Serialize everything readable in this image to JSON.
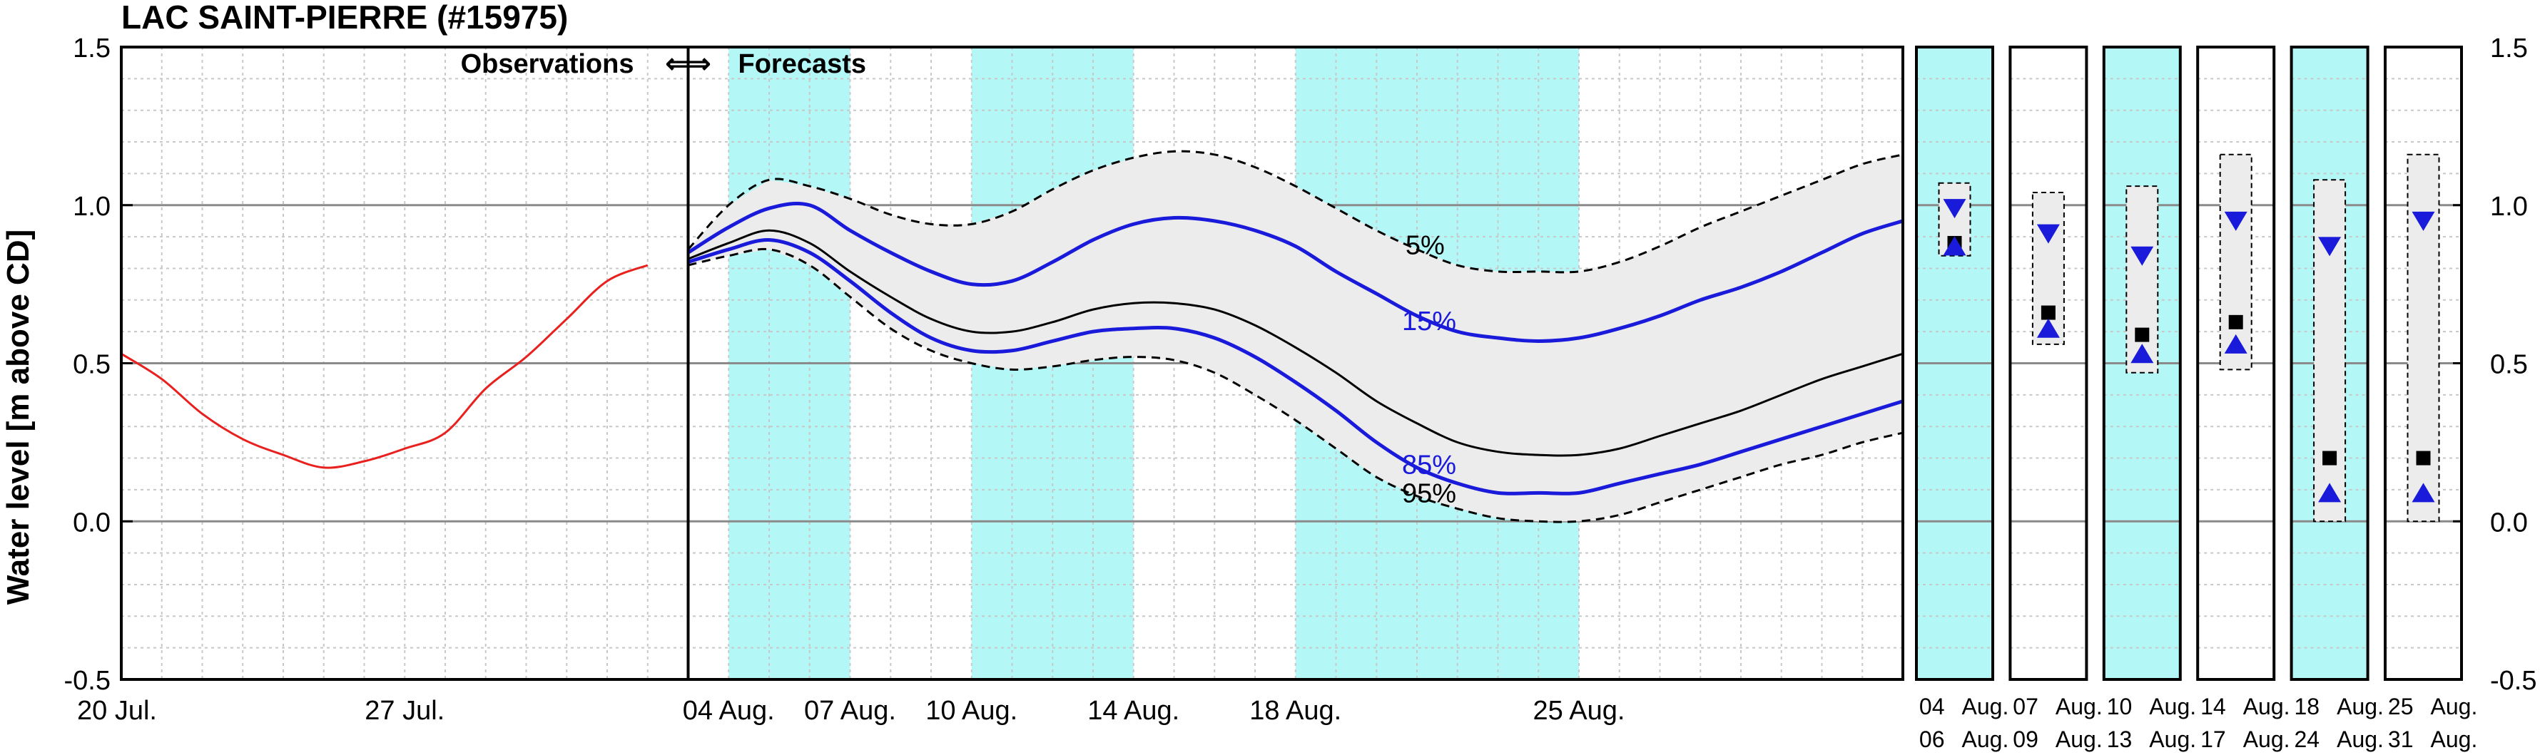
{
  "chart_data": {
    "type": "line",
    "title": "LAC SAINT-PIERRE (#15975)",
    "ylabel": "Water level [m above CD]",
    "ylim": [
      -0.5,
      1.5
    ],
    "yticks": [
      "1.5",
      "1.0",
      "0.5",
      "0.0",
      "-0.5"
    ],
    "ytick_values": [
      1.5,
      1.0,
      0.5,
      0.0,
      -0.5
    ],
    "xlim": [
      0,
      44
    ],
    "x_tick_labels": [
      {
        "x": 0,
        "label": "20 Jul."
      },
      {
        "x": 7,
        "label": "27 Jul."
      },
      {
        "x": 15,
        "label": "04 Aug."
      },
      {
        "x": 18,
        "label": "07 Aug."
      },
      {
        "x": 21,
        "label": "10 Aug."
      },
      {
        "x": 25,
        "label": "14 Aug."
      },
      {
        "x": 29,
        "label": "18 Aug."
      },
      {
        "x": 36,
        "label": "25 Aug."
      }
    ],
    "x_units": "days since 20 Jul.",
    "divider_x": 14,
    "observations_label": "Observations",
    "forecasts_label": "Forecasts",
    "arrows": "⇐⇒",
    "shaded_weeks": [
      [
        15,
        18
      ],
      [
        21,
        25
      ],
      [
        29,
        36
      ]
    ],
    "series": [
      {
        "name": "Observations",
        "color": "#e8201e",
        "style": "solid",
        "x": [
          0,
          1,
          2,
          3,
          4,
          5,
          6,
          7,
          8,
          9,
          10,
          11,
          12,
          13
        ],
        "y": [
          0.53,
          0.45,
          0.34,
          0.26,
          0.21,
          0.17,
          0.19,
          0.23,
          0.28,
          0.42,
          0.52,
          0.64,
          0.76,
          0.81
        ]
      },
      {
        "name": "5%",
        "color": "#000000",
        "style": "dashed",
        "x": [
          14,
          15,
          16,
          17,
          18,
          19,
          20,
          21,
          22,
          23,
          24,
          25,
          26,
          27,
          28,
          29,
          30,
          31,
          32,
          33,
          34,
          35,
          36,
          37,
          38,
          39,
          40,
          41,
          42,
          43,
          44
        ],
        "y": [
          0.86,
          1.0,
          1.08,
          1.06,
          1.02,
          0.97,
          0.94,
          0.94,
          0.98,
          1.05,
          1.11,
          1.15,
          1.17,
          1.16,
          1.12,
          1.06,
          0.99,
          0.92,
          0.86,
          0.81,
          0.79,
          0.79,
          0.79,
          0.82,
          0.87,
          0.93,
          0.98,
          1.03,
          1.08,
          1.13,
          1.16
        ]
      },
      {
        "name": "15%",
        "color": "#1a1adb",
        "style": "solid",
        "x": [
          14,
          15,
          16,
          17,
          18,
          19,
          20,
          21,
          22,
          23,
          24,
          25,
          26,
          27,
          28,
          29,
          30,
          31,
          32,
          33,
          34,
          35,
          36,
          37,
          38,
          39,
          40,
          41,
          42,
          43,
          44
        ],
        "y": [
          0.85,
          0.93,
          0.99,
          1.0,
          0.92,
          0.85,
          0.79,
          0.75,
          0.76,
          0.82,
          0.89,
          0.94,
          0.96,
          0.95,
          0.92,
          0.87,
          0.79,
          0.72,
          0.65,
          0.6,
          0.58,
          0.57,
          0.58,
          0.61,
          0.65,
          0.7,
          0.74,
          0.79,
          0.85,
          0.91,
          0.95
        ]
      },
      {
        "name": "Median",
        "color": "#000000",
        "style": "solid",
        "x": [
          14,
          15,
          16,
          17,
          18,
          19,
          20,
          21,
          22,
          23,
          24,
          25,
          26,
          27,
          28,
          29,
          30,
          31,
          32,
          33,
          34,
          35,
          36,
          37,
          38,
          39,
          40,
          41,
          42,
          43,
          44
        ],
        "y": [
          0.83,
          0.88,
          0.92,
          0.88,
          0.79,
          0.71,
          0.64,
          0.6,
          0.6,
          0.63,
          0.67,
          0.69,
          0.69,
          0.67,
          0.62,
          0.55,
          0.47,
          0.38,
          0.31,
          0.25,
          0.22,
          0.21,
          0.21,
          0.23,
          0.27,
          0.31,
          0.35,
          0.4,
          0.45,
          0.49,
          0.53
        ]
      },
      {
        "name": "85%",
        "color": "#1a1adb",
        "style": "solid",
        "x": [
          14,
          15,
          16,
          17,
          18,
          19,
          20,
          21,
          22,
          23,
          24,
          25,
          26,
          27,
          28,
          29,
          30,
          31,
          32,
          33,
          34,
          35,
          36,
          37,
          38,
          39,
          40,
          41,
          42,
          43,
          44
        ],
        "y": [
          0.82,
          0.86,
          0.89,
          0.85,
          0.76,
          0.66,
          0.58,
          0.54,
          0.54,
          0.57,
          0.6,
          0.61,
          0.61,
          0.58,
          0.52,
          0.44,
          0.35,
          0.25,
          0.17,
          0.12,
          0.09,
          0.09,
          0.09,
          0.12,
          0.15,
          0.18,
          0.22,
          0.26,
          0.3,
          0.34,
          0.38
        ]
      },
      {
        "name": "95%",
        "color": "#000000",
        "style": "dashed",
        "x": [
          14,
          15,
          16,
          17,
          18,
          19,
          20,
          21,
          22,
          23,
          24,
          25,
          26,
          27,
          28,
          29,
          30,
          31,
          32,
          33,
          34,
          35,
          36,
          37,
          38,
          39,
          40,
          41,
          42,
          43,
          44
        ],
        "y": [
          0.81,
          0.84,
          0.86,
          0.81,
          0.71,
          0.61,
          0.54,
          0.5,
          0.48,
          0.49,
          0.51,
          0.52,
          0.51,
          0.47,
          0.4,
          0.32,
          0.23,
          0.14,
          0.08,
          0.04,
          0.01,
          0.0,
          0.0,
          0.02,
          0.06,
          0.1,
          0.14,
          0.18,
          0.21,
          0.25,
          0.28
        ]
      }
    ],
    "curve_labels": [
      {
        "text": "5%",
        "x": 32.2,
        "y": 0.845,
        "color": "#000000"
      },
      {
        "text": "15%",
        "x": 32.3,
        "y": 0.605,
        "color": "#1a1adb"
      },
      {
        "text": "85%",
        "x": 32.3,
        "y": 0.15,
        "color": "#1a1adb"
      },
      {
        "text": "95%",
        "x": 32.3,
        "y": 0.06,
        "color": "#000000"
      }
    ],
    "weekly_summaries": [
      {
        "start": "04",
        "start_month": "Aug.",
        "end": "06",
        "end_month": "Aug.",
        "shaded": true,
        "box_low": 0.84,
        "box_high": 1.07,
        "p15": 0.99,
        "median": 0.88,
        "p85": 0.87
      },
      {
        "start": "07",
        "start_month": "Aug.",
        "end": "09",
        "end_month": "Aug.",
        "shaded": false,
        "box_low": 0.56,
        "box_high": 1.04,
        "p15": 0.91,
        "median": 0.66,
        "p85": 0.61
      },
      {
        "start": "10",
        "start_month": "Aug.",
        "end": "13",
        "end_month": "Aug.",
        "shaded": true,
        "box_low": 0.47,
        "box_high": 1.06,
        "p15": 0.84,
        "median": 0.59,
        "p85": 0.53
      },
      {
        "start": "14",
        "start_month": "Aug.",
        "end": "17",
        "end_month": "Aug.",
        "shaded": false,
        "box_low": 0.48,
        "box_high": 1.16,
        "p15": 0.95,
        "median": 0.63,
        "p85": 0.56
      },
      {
        "start": "18",
        "start_month": "Aug.",
        "end": "24",
        "end_month": "Aug.",
        "shaded": true,
        "box_low": 0.0,
        "box_high": 1.08,
        "p15": 0.87,
        "median": 0.2,
        "p85": 0.09
      },
      {
        "start": "25",
        "start_month": "Aug.",
        "end": "31",
        "end_month": "Aug.",
        "shaded": false,
        "box_low": 0.0,
        "box_high": 1.16,
        "p15": 0.95,
        "median": 0.2,
        "p85": 0.09
      }
    ],
    "colors": {
      "shade": "#b3f8f7",
      "band": "#ececec",
      "observations": "#e8201e",
      "percentile_15_85": "#1a1adb",
      "median": "#000000",
      "grid_minor": "#c8c8c8",
      "grid_major": "#8a8a8a"
    },
    "grid": true
  }
}
